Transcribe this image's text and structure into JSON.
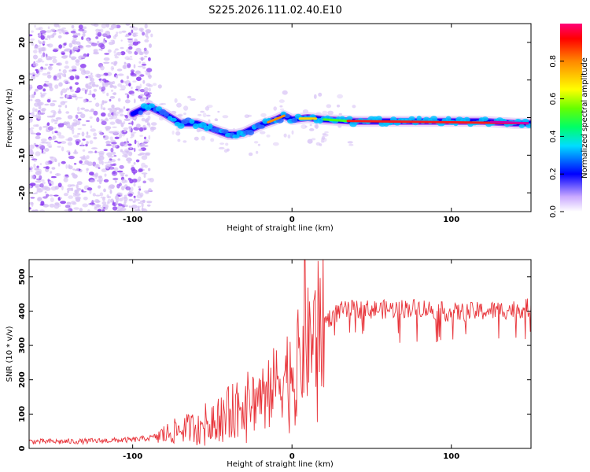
{
  "title": "S225.2026.111.02.40.E10",
  "colors": {
    "background": "#ffffff",
    "snr_line": "#e8343a",
    "spectrogram_faint": "#d7c2f5",
    "spectrogram_mid": "#8b3df0",
    "spectrogram_core": "#0000ff"
  },
  "chart_data": [
    {
      "id": "spectrogram",
      "type": "heatmap",
      "title": "",
      "xlabel": "Height of straight line (km)",
      "ylabel": "Frequency (Hz)",
      "xlim": [
        -165,
        150
      ],
      "ylim": [
        -25,
        25
      ],
      "x_ticks": [
        -100,
        0,
        100
      ],
      "x_tick_labels": [
        "-100",
        "0",
        "100"
      ],
      "y_ticks": [
        -20,
        -10,
        0,
        10,
        20
      ],
      "y_tick_labels": [
        "-20",
        "-10",
        "0",
        "10",
        "20"
      ],
      "ridge": {
        "x": [
          -100,
          -90,
          -80,
          -70,
          -60,
          -50,
          -40,
          -35,
          -30,
          -20,
          -10,
          -5,
          0,
          10,
          20,
          40,
          60,
          80,
          100,
          120,
          140,
          150
        ],
        "y": [
          1,
          3,
          1,
          -1.5,
          -1.5,
          -3,
          -4.5,
          -4.5,
          -4,
          -2,
          -0.5,
          0.5,
          -0.5,
          0,
          -0.5,
          -1,
          -1,
          -1,
          -1,
          -1,
          -1.5,
          -1.5
        ]
      },
      "colorbar": {
        "label": "Normalized spectral amplitude",
        "range": [
          0,
          1
        ],
        "ticks": [
          0.0,
          0.2,
          0.4,
          0.6,
          0.8
        ],
        "tick_labels": [
          "0.0",
          "0.2",
          "0.4",
          "0.6",
          "0.8"
        ]
      }
    },
    {
      "id": "snr",
      "type": "line",
      "title": "",
      "xlabel": "Height of straight line (km)",
      "ylabel": "SNR (10 * v/v)",
      "xlim": [
        -165,
        150
      ],
      "ylim": [
        0,
        550
      ],
      "x_ticks": [
        -100,
        0,
        100
      ],
      "x_tick_labels": [
        "-100",
        "0",
        "100"
      ],
      "y_ticks": [
        0,
        100,
        200,
        300,
        400,
        500
      ],
      "y_tick_labels": [
        "0",
        "100",
        "200",
        "300",
        "400",
        "500"
      ],
      "envelope": {
        "x": [
          -165,
          -140,
          -120,
          -100,
          -90,
          -80,
          -70,
          -60,
          -50,
          -40,
          -30,
          -20,
          -10,
          0,
          5,
          10,
          15,
          20,
          25,
          30,
          40,
          60,
          80,
          100,
          120,
          140,
          150
        ],
        "y": [
          20,
          20,
          22,
          25,
          30,
          40,
          55,
          65,
          90,
          110,
          135,
          155,
          190,
          240,
          260,
          300,
          340,
          370,
          385,
          400,
          405,
          405,
          410,
          395,
          400,
          405,
          410
        ]
      },
      "spike": {
        "x": 8,
        "y": 550
      }
    }
  ]
}
